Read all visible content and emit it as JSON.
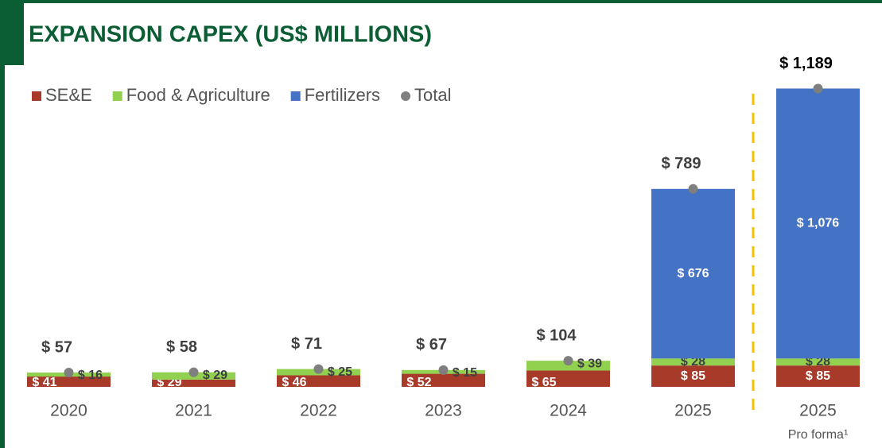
{
  "chart_data": {
    "type": "stacked_bar",
    "title": "EXPANSION CAPEX (US$ MILLIONS)",
    "categories": [
      "2020",
      "2021",
      "2022",
      "2023",
      "2024",
      "2025",
      "2025"
    ],
    "category_notes": [
      null,
      null,
      null,
      null,
      null,
      null,
      "Pro forma¹"
    ],
    "series": [
      {
        "name": "SE&E",
        "color": "#a83a2a",
        "values": [
          41,
          29,
          46,
          52,
          65,
          85,
          85
        ],
        "value_labels": [
          "$ 41",
          "$ 29",
          "$ 46",
          "$ 52",
          "$ 65",
          "$ 85",
          "$ 85"
        ]
      },
      {
        "name": "Food & Agriculture",
        "color": "#92d050",
        "values": [
          16,
          29,
          25,
          15,
          39,
          28,
          28
        ],
        "value_labels": [
          "$ 16",
          "$ 29",
          "$ 25",
          "$ 15",
          "$ 39",
          "$ 28",
          "$ 28"
        ]
      },
      {
        "name": "Fertilizers",
        "color": "#4472c4",
        "values": [
          null,
          null,
          null,
          null,
          null,
          676,
          1076
        ],
        "value_labels": [
          null,
          null,
          null,
          null,
          null,
          "$ 676",
          "$ 1,076"
        ]
      },
      {
        "name": "Total",
        "color": "#7f7f7f",
        "marker": "dot",
        "values": [
          57,
          58,
          71,
          67,
          104,
          789,
          1189
        ],
        "value_labels": [
          "$ 57",
          "$ 58",
          "$ 71",
          "$ 67",
          "$ 104",
          "$ 789",
          "$ 1,189"
        ]
      }
    ],
    "ylim": [
      0,
      1200
    ],
    "legend": "top-left",
    "separator_before": 6
  }
}
